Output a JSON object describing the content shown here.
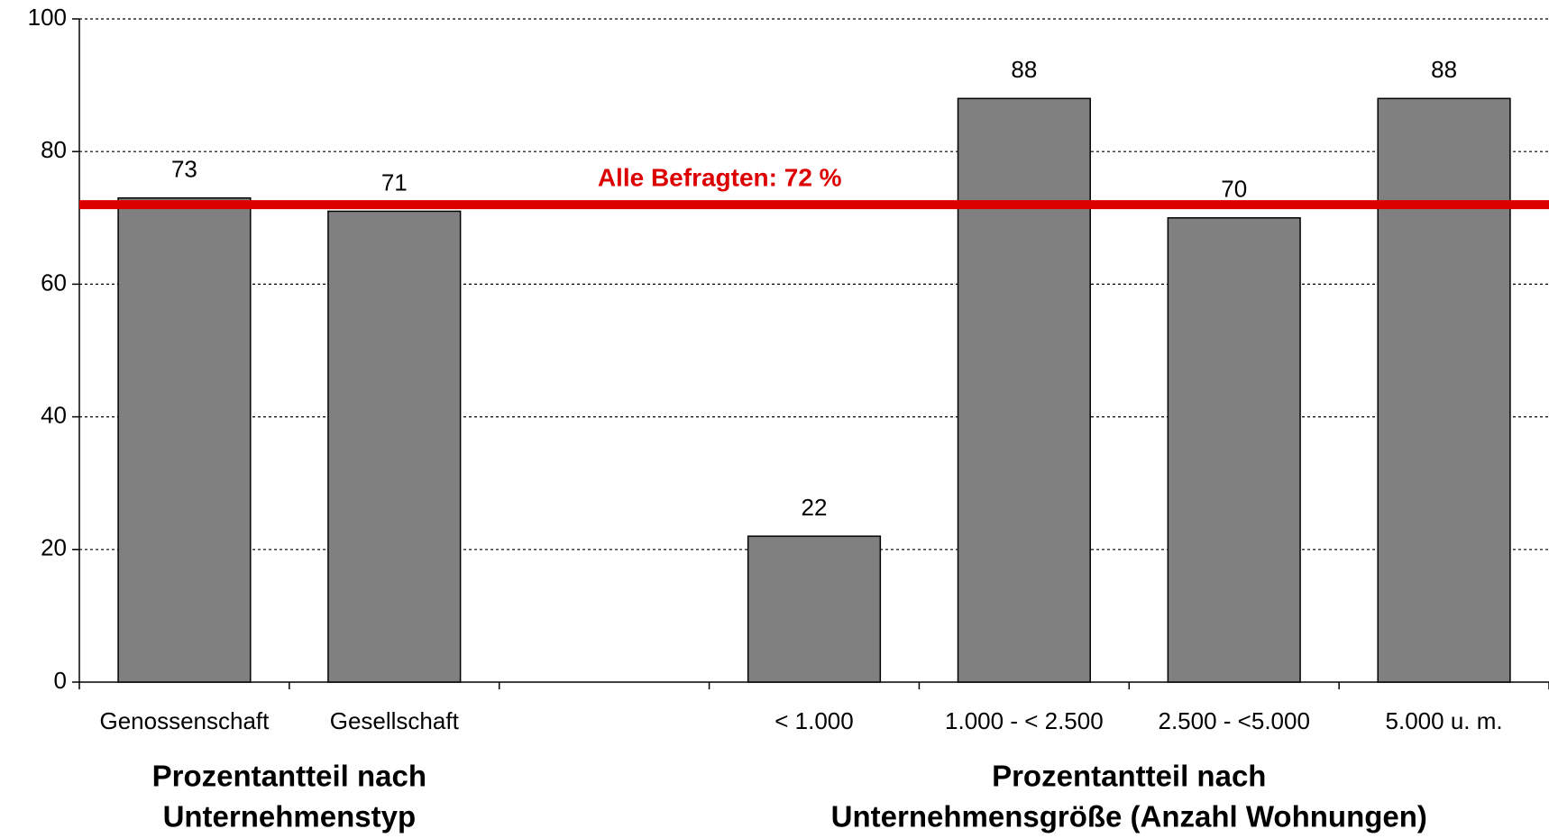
{
  "chart_data": {
    "type": "bar",
    "categories": [
      "Genossenschaft",
      "Gesellschaft",
      null,
      "< 1.000",
      "1.000 - < 2.500",
      "2.500 - <5.000",
      "5.000 u. m."
    ],
    "values": [
      73,
      71,
      null,
      22,
      88,
      70,
      88
    ],
    "color": "#808080",
    "ylim": [
      0,
      100
    ],
    "yticks": [
      0,
      20,
      40,
      60,
      80,
      100
    ],
    "grid": true,
    "reference_line": {
      "value": 72,
      "label": "Alle Befragten: 72 %",
      "color": "#dd0000"
    },
    "group_labels": [
      {
        "lines": [
          "Prozentantteil nach",
          "Unternehmenstyp"
        ],
        "from": 0,
        "to": 1
      },
      {
        "lines": [
          "Prozentantteil nach",
          "Unternehmensgröße (Anzahl Wohnungen)"
        ],
        "from": 3,
        "to": 6
      }
    ]
  }
}
